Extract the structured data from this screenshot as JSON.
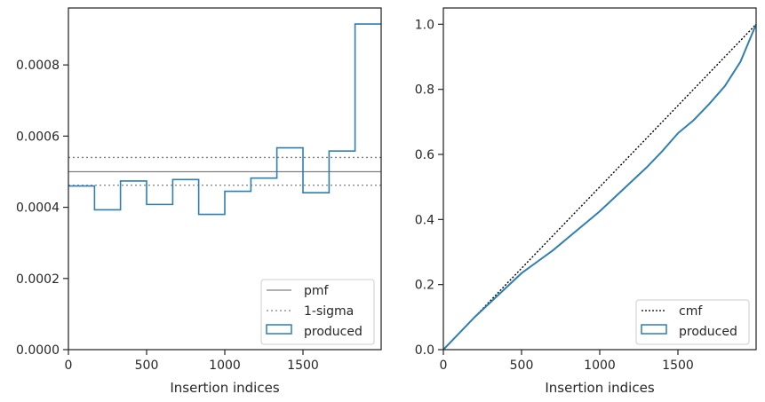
{
  "chart_data": [
    {
      "type": "step",
      "xlabel": "Insertion indices",
      "ylabel": "",
      "xlim": [
        0,
        2000
      ],
      "ylim": [
        0,
        0.00096
      ],
      "xticks": [
        0,
        500,
        1000,
        1500
      ],
      "xtick_labels": [
        "0",
        "500",
        "1000",
        "1500"
      ],
      "yticks": [
        0,
        0.0002,
        0.0004,
        0.0006,
        0.0008
      ],
      "ytick_labels": [
        "0.0000",
        "0.0002",
        "0.0004",
        "0.0006",
        "0.0008"
      ],
      "pmf": 0.0005,
      "sigma_band": [
        0.000462,
        0.00054
      ],
      "bin_edges": [
        0,
        167,
        333,
        500,
        667,
        833,
        1000,
        1167,
        1333,
        1500,
        1667,
        1833,
        2000
      ],
      "produced": [
        0.00046,
        0.000393,
        0.000474,
        0.000408,
        0.000478,
        0.00038,
        0.000445,
        0.000482,
        0.000567,
        0.000441,
        0.000558,
        0.000915
      ],
      "legend": {
        "location": "lower right",
        "entries": [
          "pmf",
          "1-sigma",
          "produced"
        ]
      },
      "colors": {
        "pmf": "#808080",
        "sigma": "#808080",
        "produced": "#2f7fb1"
      }
    },
    {
      "type": "line",
      "xlabel": "Insertion indices",
      "ylabel": "",
      "xlim": [
        0,
        2000
      ],
      "ylim": [
        0,
        1.05
      ],
      "xticks": [
        0,
        500,
        1000,
        1500
      ],
      "xtick_labels": [
        "0",
        "500",
        "1000",
        "1500"
      ],
      "yticks": [
        0,
        0.2,
        0.4,
        0.6,
        0.8,
        1.0
      ],
      "ytick_labels": [
        "0.0",
        "0.2",
        "0.4",
        "0.6",
        "0.8",
        "1.0"
      ],
      "cmf": {
        "x": [
          0,
          2000
        ],
        "y": [
          0,
          1.0
        ]
      },
      "produced": {
        "x": [
          0,
          100,
          200,
          300,
          400,
          500,
          600,
          700,
          800,
          900,
          1000,
          1100,
          1200,
          1300,
          1400,
          1500,
          1600,
          1700,
          1800,
          1900,
          2000
        ],
        "y": [
          0,
          0.05,
          0.1,
          0.145,
          0.19,
          0.235,
          0.27,
          0.305,
          0.345,
          0.385,
          0.425,
          0.47,
          0.515,
          0.56,
          0.61,
          0.665,
          0.705,
          0.755,
          0.81,
          0.885,
          1.0
        ]
      },
      "legend": {
        "location": "lower right",
        "entries": [
          "cmf",
          "produced"
        ]
      },
      "colors": {
        "cmf": "#000000",
        "produced": "#2f7fb1"
      }
    }
  ]
}
